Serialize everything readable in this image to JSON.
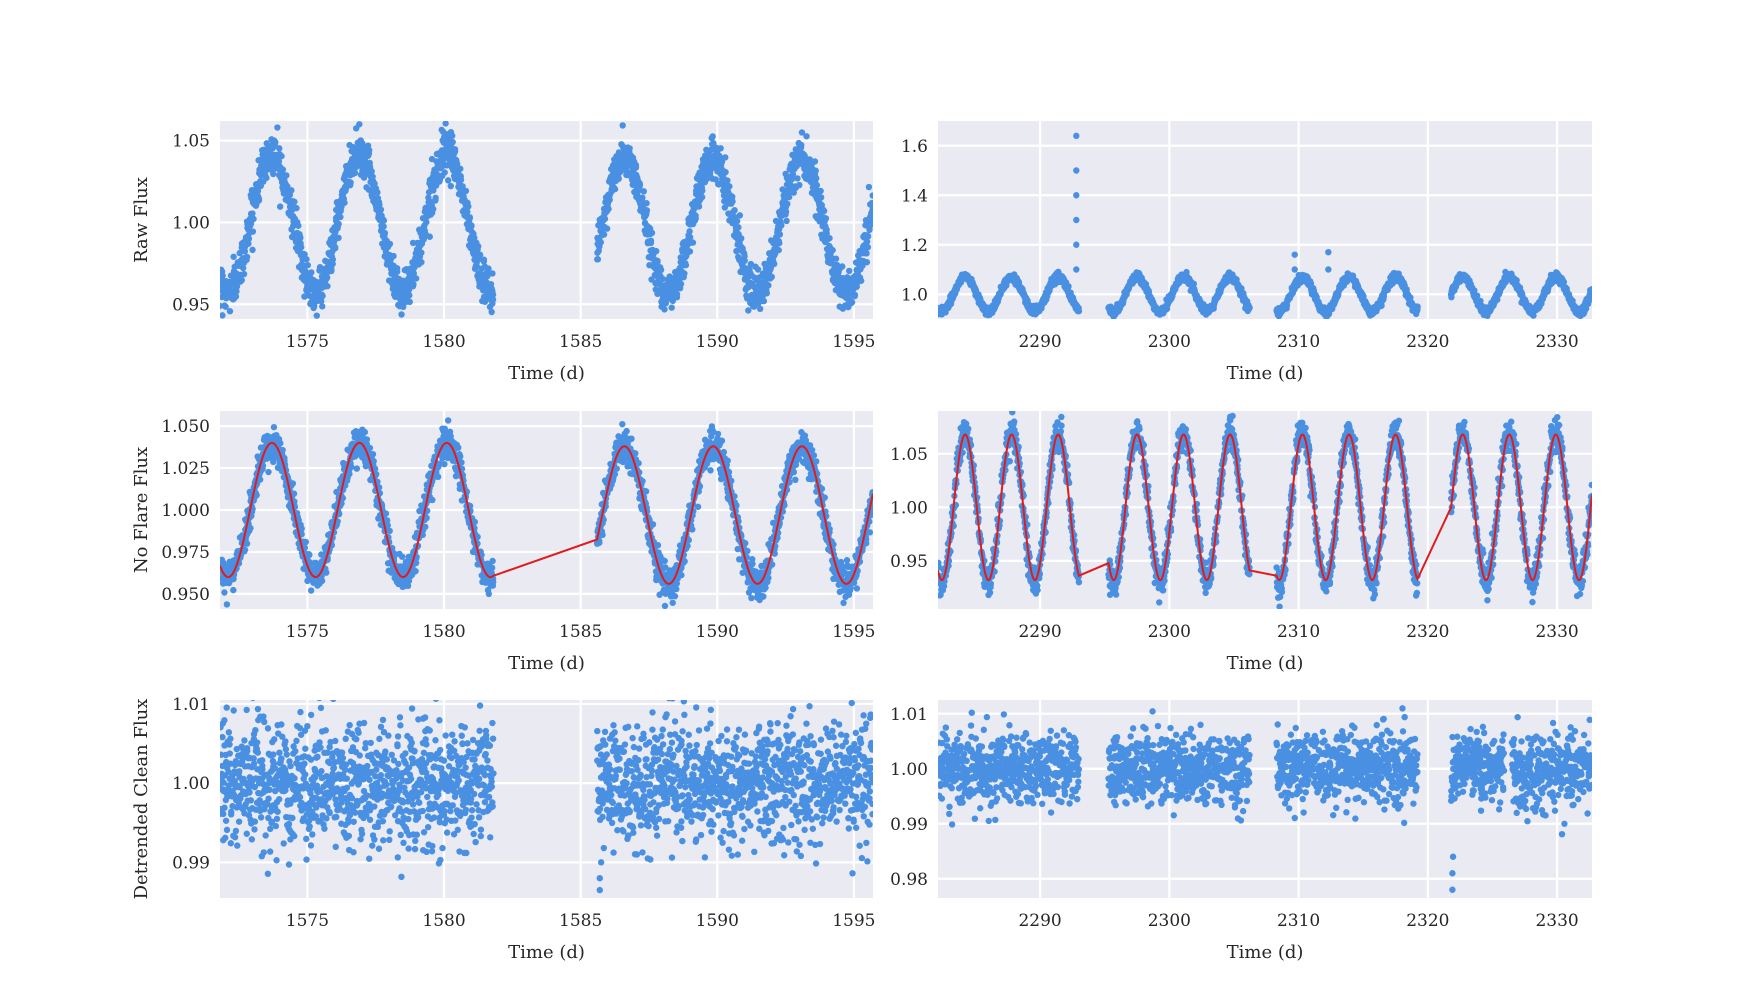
{
  "chart_data": [
    {
      "type": "scatter",
      "xlabel": "Time (d)",
      "ylabel": "Raw Flux",
      "xlim": [
        1571.8,
        1595.7
      ],
      "ylim": [
        0.941,
        1.062
      ],
      "xticks": [
        "1575",
        "1580",
        "1585",
        "1590",
        "1595"
      ],
      "yticks": [
        "0.95",
        "1.00",
        "1.05"
      ],
      "grid": true,
      "series": [
        {
          "color": "#4a90e2",
          "segments": [
            {
              "start": 1571.8,
              "end": 1581.8,
              "baseline": 1.0,
              "amplitude": 0.042,
              "period": 3.2,
              "phase_peak": 1573.7,
              "noise": 0.006
            },
            {
              "start": 1585.6,
              "end": 1595.7,
              "baseline": 0.998,
              "amplitude": 0.041,
              "period": 3.25,
              "phase_peak": 1586.6,
              "noise": 0.006
            }
          ]
        }
      ],
      "spikes": [
        {
          "x": 1573.9,
          "y": 1.058
        },
        {
          "x": 1576.9,
          "y": 1.06
        },
        {
          "x": 1580.3,
          "y": 1.053
        },
        {
          "x": 1593.1,
          "y": 1.055
        }
      ]
    },
    {
      "type": "scatter",
      "xlabel": "Time (d)",
      "ylabel": "",
      "xlim": [
        2282.1,
        2332.7
      ],
      "ylim": [
        0.9,
        1.7
      ],
      "xticks": [
        "2290",
        "2300",
        "2310",
        "2320",
        "2330"
      ],
      "yticks": [
        "1.0",
        "1.2",
        "1.4",
        "1.6"
      ],
      "grid": true,
      "series": [
        {
          "color": "#4a90e2",
          "segments": [
            {
              "start": 2282.1,
              "end": 2293.0,
              "baseline": 1.0,
              "amplitude": 0.07,
              "period": 3.6,
              "phase_peak": 2284.2,
              "noise": 0.008
            },
            {
              "start": 2295.3,
              "end": 2306.2,
              "baseline": 1.0,
              "amplitude": 0.07,
              "period": 3.6,
              "phase_peak": 2297.5,
              "noise": 0.008
            },
            {
              "start": 2308.3,
              "end": 2319.2,
              "baseline": 1.0,
              "amplitude": 0.07,
              "period": 3.6,
              "phase_peak": 2310.3,
              "noise": 0.008
            },
            {
              "start": 2321.8,
              "end": 2332.7,
              "baseline": 1.0,
              "amplitude": 0.07,
              "period": 3.6,
              "phase_peak": 2322.7,
              "noise": 0.008
            }
          ]
        }
      ],
      "spikes": [
        {
          "x": 2292.8,
          "y": 1.64
        },
        {
          "x": 2292.8,
          "y": 1.5
        },
        {
          "x": 2292.8,
          "y": 1.4
        },
        {
          "x": 2292.8,
          "y": 1.3
        },
        {
          "x": 2292.8,
          "y": 1.2
        },
        {
          "x": 2292.8,
          "y": 1.1
        },
        {
          "x": 2309.7,
          "y": 1.16
        },
        {
          "x": 2309.7,
          "y": 1.1
        },
        {
          "x": 2312.3,
          "y": 1.17
        },
        {
          "x": 2312.3,
          "y": 1.1
        },
        {
          "x": 2326.0,
          "y": 1.09
        }
      ]
    },
    {
      "type": "scatter",
      "xlabel": "Time (d)",
      "ylabel": "No Flare Flux",
      "xlim": [
        1571.8,
        1595.7
      ],
      "ylim": [
        0.941,
        1.059
      ],
      "xticks": [
        "1575",
        "1580",
        "1585",
        "1590",
        "1595"
      ],
      "yticks": [
        "0.950",
        "0.975",
        "1.000",
        "1.025",
        "1.050"
      ],
      "grid": true,
      "series": [
        {
          "color": "#4a90e2",
          "segments": [
            {
              "start": 1571.8,
              "end": 1581.8,
              "baseline": 1.0,
              "amplitude": 0.04,
              "period": 3.2,
              "phase_peak": 1573.7,
              "noise": 0.005
            },
            {
              "start": 1585.6,
              "end": 1595.7,
              "baseline": 0.997,
              "amplitude": 0.041,
              "period": 3.25,
              "phase_peak": 1586.6,
              "noise": 0.005
            }
          ]
        }
      ],
      "model_line": {
        "color": "#e31a1c",
        "segments": [
          {
            "start": 1571.8,
            "end": 1581.8,
            "baseline": 1.0,
            "amplitude": 0.04,
            "period": 3.2,
            "phase_peak": 1573.7
          },
          {
            "start": 1585.6,
            "end": 1595.7,
            "baseline": 0.997,
            "amplitude": 0.041,
            "period": 3.25,
            "phase_peak": 1586.6
          }
        ]
      }
    },
    {
      "type": "scatter",
      "xlabel": "Time (d)",
      "ylabel": "",
      "xlim": [
        2282.1,
        2332.7
      ],
      "ylim": [
        0.905,
        1.09
      ],
      "xticks": [
        "2290",
        "2300",
        "2310",
        "2320",
        "2330"
      ],
      "yticks": [
        "0.95",
        "1.00",
        "1.05"
      ],
      "grid": true,
      "series": [
        {
          "color": "#4a90e2",
          "segments": [
            {
              "start": 2282.1,
              "end": 2293.0,
              "baseline": 1.0,
              "amplitude": 0.07,
              "period": 3.6,
              "phase_peak": 2284.2,
              "noise": 0.007
            },
            {
              "start": 2295.3,
              "end": 2306.2,
              "baseline": 1.0,
              "amplitude": 0.07,
              "period": 3.6,
              "phase_peak": 2297.5,
              "noise": 0.007
            },
            {
              "start": 2308.3,
              "end": 2319.2,
              "baseline": 1.0,
              "amplitude": 0.07,
              "period": 3.6,
              "phase_peak": 2310.3,
              "noise": 0.007
            },
            {
              "start": 2321.8,
              "end": 2332.7,
              "baseline": 1.0,
              "amplitude": 0.07,
              "period": 3.6,
              "phase_peak": 2322.7,
              "noise": 0.007
            }
          ]
        }
      ],
      "model_line": {
        "color": "#e31a1c",
        "segments": [
          {
            "start": 2282.1,
            "end": 2293.0,
            "baseline": 1.0,
            "amplitude": 0.068,
            "period": 3.6,
            "phase_peak": 2284.2
          },
          {
            "start": 2295.3,
            "end": 2306.2,
            "baseline": 1.0,
            "amplitude": 0.068,
            "period": 3.6,
            "phase_peak": 2297.5
          },
          {
            "start": 2308.3,
            "end": 2319.2,
            "baseline": 1.0,
            "amplitude": 0.068,
            "period": 3.6,
            "phase_peak": 2310.3
          },
          {
            "start": 2321.8,
            "end": 2332.7,
            "baseline": 1.0,
            "amplitude": 0.068,
            "period": 3.6,
            "phase_peak": 2322.7
          }
        ]
      }
    },
    {
      "type": "scatter",
      "xlabel": "Time (d)",
      "ylabel": "Detrended Clean Flux",
      "xlim": [
        1571.8,
        1595.7
      ],
      "ylim": [
        0.9855,
        1.0105
      ],
      "xticks": [
        "1575",
        "1580",
        "1585",
        "1590",
        "1595"
      ],
      "yticks": [
        "0.99",
        "1.00",
        "1.01"
      ],
      "grid": true,
      "series": [
        {
          "color": "#4a90e2",
          "segments": [
            {
              "start": 1571.8,
              "end": 1581.8,
              "baseline": 1.0,
              "amplitude": 0,
              "period": 1,
              "phase_peak": 0,
              "noise": 0.0038
            },
            {
              "start": 1585.6,
              "end": 1595.7,
              "baseline": 1.0,
              "amplitude": 0,
              "period": 1,
              "phase_peak": 0,
              "noise": 0.0038
            }
          ]
        }
      ],
      "dips": [
        {
          "x": 1585.7,
          "y": 0.9865
        },
        {
          "x": 1585.7,
          "y": 0.988
        },
        {
          "x": 1585.75,
          "y": 0.99
        }
      ]
    },
    {
      "type": "scatter",
      "xlabel": "Time (d)",
      "ylabel": "",
      "xlim": [
        2282.1,
        2332.7
      ],
      "ylim": [
        0.9765,
        1.0125
      ],
      "xticks": [
        "2290",
        "2300",
        "2310",
        "2320",
        "2330"
      ],
      "yticks": [
        "0.98",
        "0.99",
        "1.00",
        "1.01"
      ],
      "grid": true,
      "series": [
        {
          "color": "#4a90e2",
          "segments": [
            {
              "start": 2282.1,
              "end": 2293.0,
              "baseline": 1.0,
              "amplitude": 0,
              "period": 1,
              "phase_peak": 0,
              "noise": 0.0032
            },
            {
              "start": 2295.3,
              "end": 2306.2,
              "baseline": 1.0,
              "amplitude": 0,
              "period": 1,
              "phase_peak": 0,
              "noise": 0.0032
            },
            {
              "start": 2308.3,
              "end": 2319.2,
              "baseline": 1.0,
              "amplitude": 0,
              "period": 1,
              "phase_peak": 0,
              "noise": 0.0032
            },
            {
              "start": 2321.8,
              "end": 2325.9,
              "baseline": 1.0,
              "amplitude": 0,
              "period": 1,
              "phase_peak": 0,
              "noise": 0.0032
            },
            {
              "start": 2326.5,
              "end": 2332.7,
              "baseline": 1.0,
              "amplitude": 0,
              "period": 1,
              "phase_peak": 0,
              "noise": 0.0032
            }
          ]
        }
      ],
      "dips": [
        {
          "x": 2321.9,
          "y": 0.978
        },
        {
          "x": 2321.9,
          "y": 0.981
        },
        {
          "x": 2321.95,
          "y": 0.984
        }
      ]
    }
  ]
}
